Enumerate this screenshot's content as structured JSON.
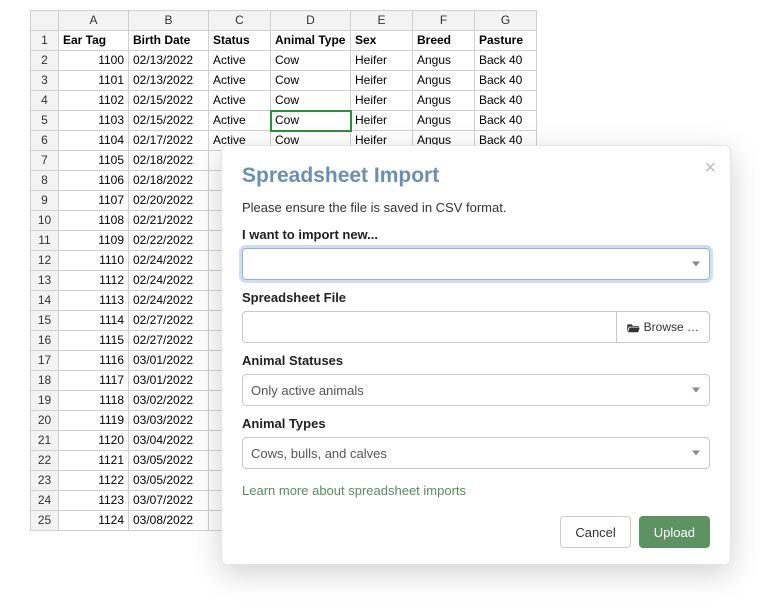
{
  "sheet": {
    "col_letters": [
      "A",
      "B",
      "C",
      "D",
      "E",
      "F",
      "G"
    ],
    "headers": [
      "Ear Tag",
      "Birth Date",
      "Status",
      "Animal Type",
      "Sex",
      "Breed",
      "Pasture"
    ],
    "rows": [
      {
        "tag": "1100",
        "date": "02/13/2022",
        "status": "Active",
        "type": "Cow",
        "sex": "Heifer",
        "breed": "Angus",
        "pasture": "Back 40"
      },
      {
        "tag": "1101",
        "date": "02/13/2022",
        "status": "Active",
        "type": "Cow",
        "sex": "Heifer",
        "breed": "Angus",
        "pasture": "Back 40"
      },
      {
        "tag": "1102",
        "date": "02/15/2022",
        "status": "Active",
        "type": "Cow",
        "sex": "Heifer",
        "breed": "Angus",
        "pasture": "Back 40"
      },
      {
        "tag": "1103",
        "date": "02/15/2022",
        "status": "Active",
        "type": "Cow",
        "sex": "Heifer",
        "breed": "Angus",
        "pasture": "Back 40"
      },
      {
        "tag": "1104",
        "date": "02/17/2022",
        "status": "Active",
        "type": "Cow",
        "sex": "Heifer",
        "breed": "Angus",
        "pasture": "Back 40"
      },
      {
        "tag": "1105",
        "date": "02/18/2022"
      },
      {
        "tag": "1106",
        "date": "02/18/2022"
      },
      {
        "tag": "1107",
        "date": "02/20/2022"
      },
      {
        "tag": "1108",
        "date": "02/21/2022"
      },
      {
        "tag": "1109",
        "date": "02/22/2022"
      },
      {
        "tag": "1110",
        "date": "02/24/2022"
      },
      {
        "tag": "1112",
        "date": "02/24/2022"
      },
      {
        "tag": "1113",
        "date": "02/24/2022"
      },
      {
        "tag": "1114",
        "date": "02/27/2022"
      },
      {
        "tag": "1115",
        "date": "02/27/2022"
      },
      {
        "tag": "1116",
        "date": "03/01/2022"
      },
      {
        "tag": "1117",
        "date": "03/01/2022"
      },
      {
        "tag": "1118",
        "date": "03/02/2022"
      },
      {
        "tag": "1119",
        "date": "03/03/2022"
      },
      {
        "tag": "1120",
        "date": "03/04/2022"
      },
      {
        "tag": "1121",
        "date": "03/05/2022"
      },
      {
        "tag": "1122",
        "date": "03/05/2022"
      },
      {
        "tag": "1123",
        "date": "03/07/2022"
      },
      {
        "tag": "1124",
        "date": "03/08/2022"
      }
    ],
    "selected_cell": {
      "row": 5,
      "col": "D"
    }
  },
  "modal": {
    "title": "Spreadsheet Import",
    "help_text": "Please ensure the file is saved in CSV format.",
    "labels": {
      "import_new": "I want to import new...",
      "file": "Spreadsheet File",
      "statuses": "Animal Statuses",
      "types": "Animal Types"
    },
    "import_new_value": "",
    "file_value": "",
    "browse_label": "Browse …",
    "status_value": "Only active animals",
    "types_value": "Cows, bulls, and calves",
    "learn_more": "Learn more about spreadsheet imports",
    "cancel_label": "Cancel",
    "upload_label": "Upload",
    "colors": {
      "title": "#6b8fb3",
      "primary_btn": "#5d9263",
      "link": "#5a8a5f",
      "selection": "#2e8f3e"
    }
  }
}
